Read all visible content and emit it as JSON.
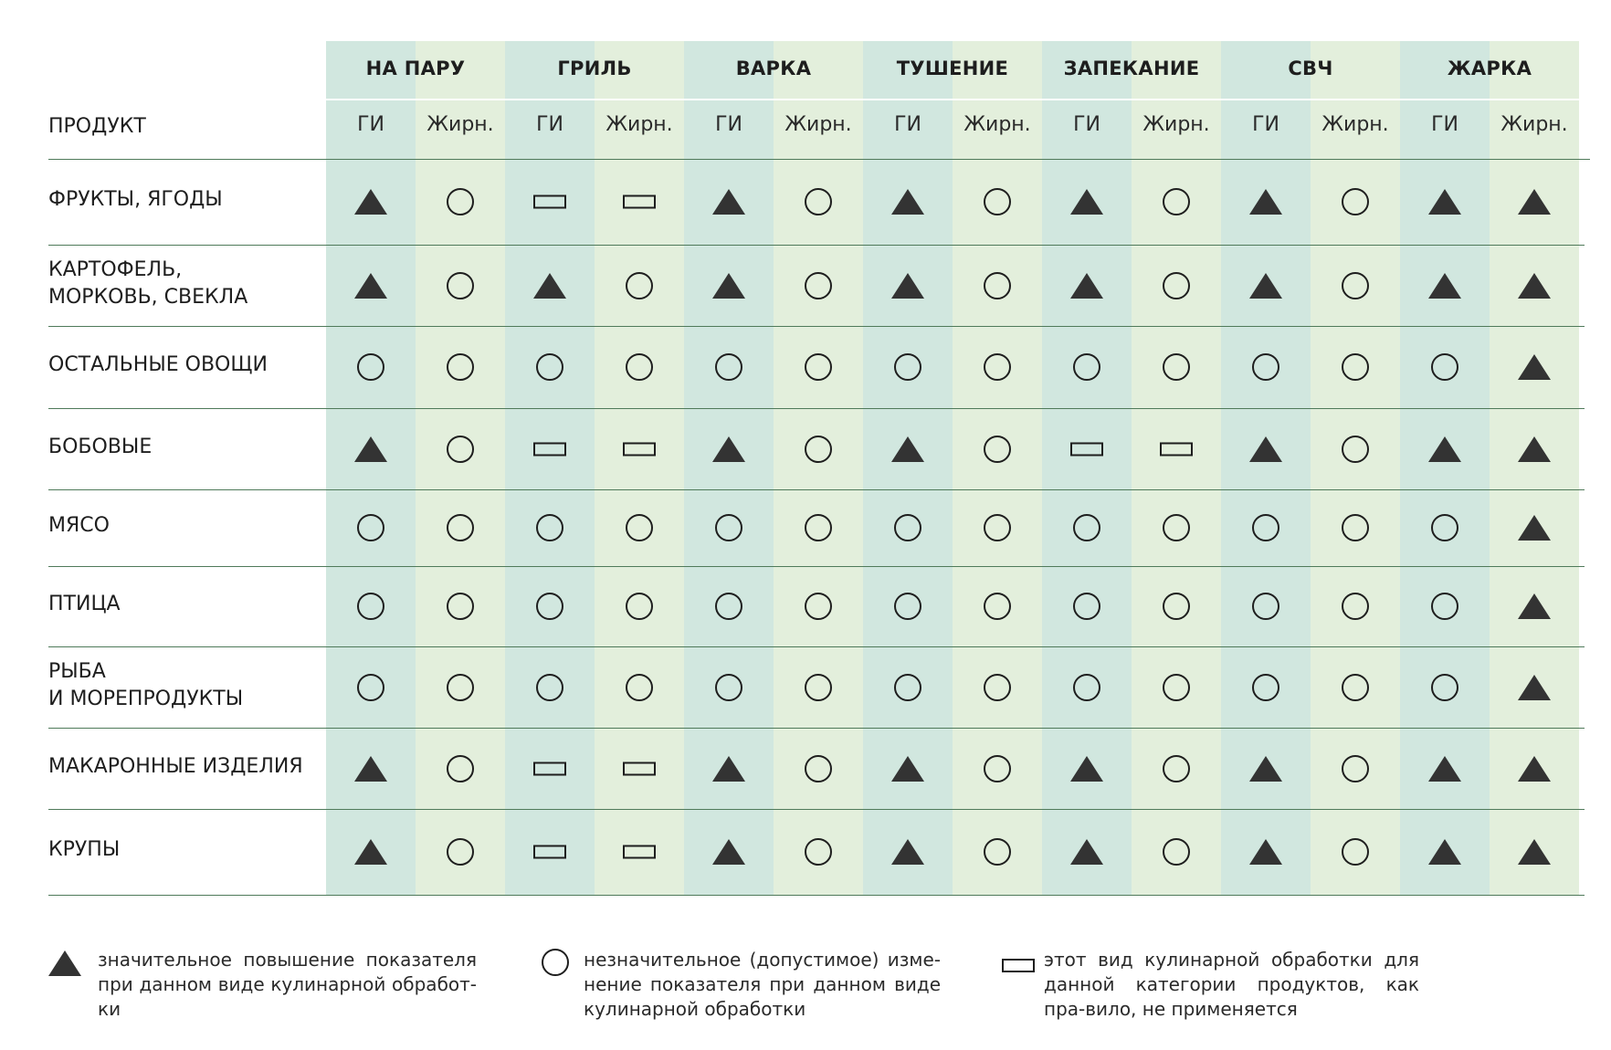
{
  "table": {
    "product_header": "ПРОДУКТ",
    "methods": [
      "НА ПАРУ",
      "ГРИЛЬ",
      "ВАРКА",
      "ТУШЕНИЕ",
      "ЗАПЕКАНИЕ",
      "СВЧ",
      "ЖАРКА"
    ],
    "sub_headers": [
      "ГИ",
      "Жирн."
    ],
    "rows": [
      {
        "label": "ФРУКТЫ, ЯГОДЫ",
        "marks": [
          "T",
          "C",
          "R",
          "R",
          "T",
          "C",
          "T",
          "C",
          "T",
          "C",
          "T",
          "C",
          "T",
          "T"
        ]
      },
      {
        "label": "КАРТОФЕЛЬ,\nМОРКОВЬ, СВЕКЛА",
        "marks": [
          "T",
          "C",
          "T",
          "C",
          "T",
          "C",
          "T",
          "C",
          "T",
          "C",
          "T",
          "C",
          "T",
          "T"
        ]
      },
      {
        "label": "ОСТАЛЬНЫЕ ОВОЩИ",
        "marks": [
          "C",
          "C",
          "C",
          "C",
          "C",
          "C",
          "C",
          "C",
          "C",
          "C",
          "C",
          "C",
          "C",
          "T"
        ]
      },
      {
        "label": "БОБОВЫЕ",
        "marks": [
          "T",
          "C",
          "R",
          "R",
          "T",
          "C",
          "T",
          "C",
          "R",
          "R",
          "T",
          "C",
          "T",
          "T"
        ]
      },
      {
        "label": "МЯСО",
        "marks": [
          "C",
          "C",
          "C",
          "C",
          "C",
          "C",
          "C",
          "C",
          "C",
          "C",
          "C",
          "C",
          "C",
          "T"
        ]
      },
      {
        "label": "ПТИЦА",
        "marks": [
          "C",
          "C",
          "C",
          "C",
          "C",
          "C",
          "C",
          "C",
          "C",
          "C",
          "C",
          "C",
          "C",
          "T"
        ]
      },
      {
        "label": "РЫБА\nИ МОРЕПРОДУКТЫ",
        "marks": [
          "C",
          "C",
          "C",
          "C",
          "C",
          "C",
          "C",
          "C",
          "C",
          "C",
          "C",
          "C",
          "C",
          "T"
        ]
      },
      {
        "label": "МАКАРОННЫЕ ИЗДЕЛИЯ",
        "marks": [
          "T",
          "C",
          "R",
          "R",
          "T",
          "C",
          "T",
          "C",
          "T",
          "C",
          "T",
          "C",
          "T",
          "T"
        ]
      },
      {
        "label": "КРУПЫ",
        "marks": [
          "T",
          "C",
          "R",
          "R",
          "T",
          "C",
          "T",
          "C",
          "T",
          "C",
          "T",
          "C",
          "T",
          "T"
        ]
      }
    ]
  },
  "marks_legend": {
    "T": {
      "icon": "triangle-icon",
      "text": "значительное повышение показателя при данном виде кулинарной обработ-ки"
    },
    "C": {
      "icon": "circle-icon",
      "text": "незначительное (допустимое) изме-нение показателя при данном виде кулинарной обработки"
    },
    "R": {
      "icon": "rectangle-icon",
      "text": "этот вид кулинарной обработки для данной категории продуктов, как пра-вило, не применяется"
    }
  },
  "colors": {
    "column_teal": "#d1e7df",
    "column_green": "#e3efdc",
    "rule": "#4f7a5a",
    "mark": "#333333"
  }
}
